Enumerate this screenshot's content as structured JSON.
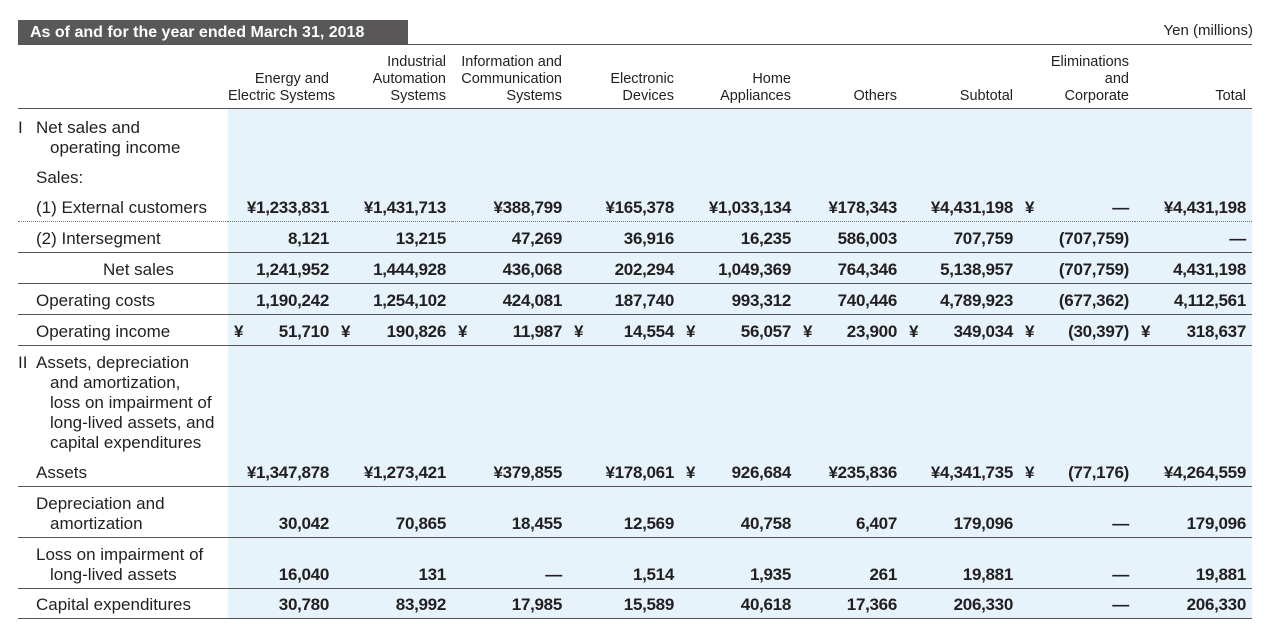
{
  "header": {
    "title": "As of and for the year ended March 31, 2018",
    "unit": "Yen (millions)"
  },
  "table": {
    "columns": [
      [
        "Energy and",
        "Electric Systems"
      ],
      [
        "Industrial",
        "Automation",
        "Systems"
      ],
      [
        "Information and",
        "Communication",
        "Systems"
      ],
      [
        "Electronic",
        "Devices"
      ],
      [
        "Home",
        "Appliances"
      ],
      [
        "Others"
      ],
      [
        "Subtotal"
      ],
      [
        "Eliminations",
        "and",
        "Corporate"
      ],
      [
        "Total"
      ]
    ],
    "rows": [
      {
        "numeral": "I",
        "label": [
          "Net sales and",
          "operating income"
        ]
      },
      {
        "label": [
          "Sales:"
        ]
      },
      {
        "label": [
          "(1) External customers"
        ],
        "cells": [
          "¥1,233,831",
          "¥1,431,713",
          "¥388,799",
          "¥165,378",
          "¥1,033,134",
          "¥178,343",
          "¥4,431,198",
          {
            "prefix": "¥",
            "text": "—"
          },
          "¥4,431,198"
        ]
      },
      {
        "label": [
          "(2) Intersegment"
        ],
        "cells": [
          "8,121",
          "13,215",
          "47,269",
          "36,916",
          "16,235",
          "586,003",
          "707,759",
          "(707,759)",
          "—"
        ]
      },
      {
        "label": [
          "Net sales"
        ],
        "cells": [
          "1,241,952",
          "1,444,928",
          "436,068",
          "202,294",
          "1,049,369",
          "764,346",
          "5,138,957",
          "(707,759)",
          "4,431,198"
        ]
      },
      {
        "label": [
          "Operating costs"
        ],
        "cells": [
          "1,190,242",
          "1,254,102",
          "424,081",
          "187,740",
          "993,312",
          "740,446",
          "4,789,923",
          "(677,362)",
          "4,112,561"
        ]
      },
      {
        "label": [
          "Operating income"
        ],
        "cells": [
          {
            "prefix": "¥",
            "text": "51,710"
          },
          {
            "prefix": "¥",
            "text": "190,826"
          },
          {
            "prefix": "¥",
            "text": "11,987"
          },
          {
            "prefix": "¥",
            "text": "14,554"
          },
          {
            "prefix": "¥",
            "text": "56,057"
          },
          {
            "prefix": "¥",
            "text": "23,900"
          },
          {
            "prefix": "¥",
            "text": "349,034"
          },
          {
            "prefix": "¥",
            "text": "(30,397)"
          },
          {
            "prefix": "¥",
            "text": "318,637"
          }
        ]
      },
      {
        "numeral": "II",
        "label": [
          "Assets, depreciation",
          "and amortization,",
          "loss on impairment of",
          "long-lived assets, and",
          "capital expenditures"
        ]
      },
      {
        "label": [
          "Assets"
        ],
        "cells": [
          "¥1,347,878",
          "¥1,273,421",
          "¥379,855",
          "¥178,061",
          {
            "prefix": "¥",
            "text": "926,684"
          },
          "¥235,836",
          "¥4,341,735",
          {
            "prefix": "¥",
            "text": "(77,176)"
          },
          "¥4,264,559"
        ]
      },
      {
        "label": [
          "Depreciation and",
          "amortization"
        ],
        "cells": [
          "30,042",
          "70,865",
          "18,455",
          "12,569",
          "40,758",
          "6,407",
          "179,096",
          "—",
          "179,096"
        ]
      },
      {
        "label": [
          "Loss on impairment of",
          "long-lived assets"
        ],
        "cells": [
          "16,040",
          "131",
          "—",
          "1,514",
          "1,935",
          "261",
          "19,881",
          "—",
          "19,881"
        ]
      },
      {
        "label": [
          "Capital expenditures"
        ],
        "cells": [
          "30,780",
          "83,992",
          "17,985",
          "15,589",
          "40,618",
          "17,366",
          "206,330",
          "—",
          "206,330"
        ]
      }
    ]
  }
}
